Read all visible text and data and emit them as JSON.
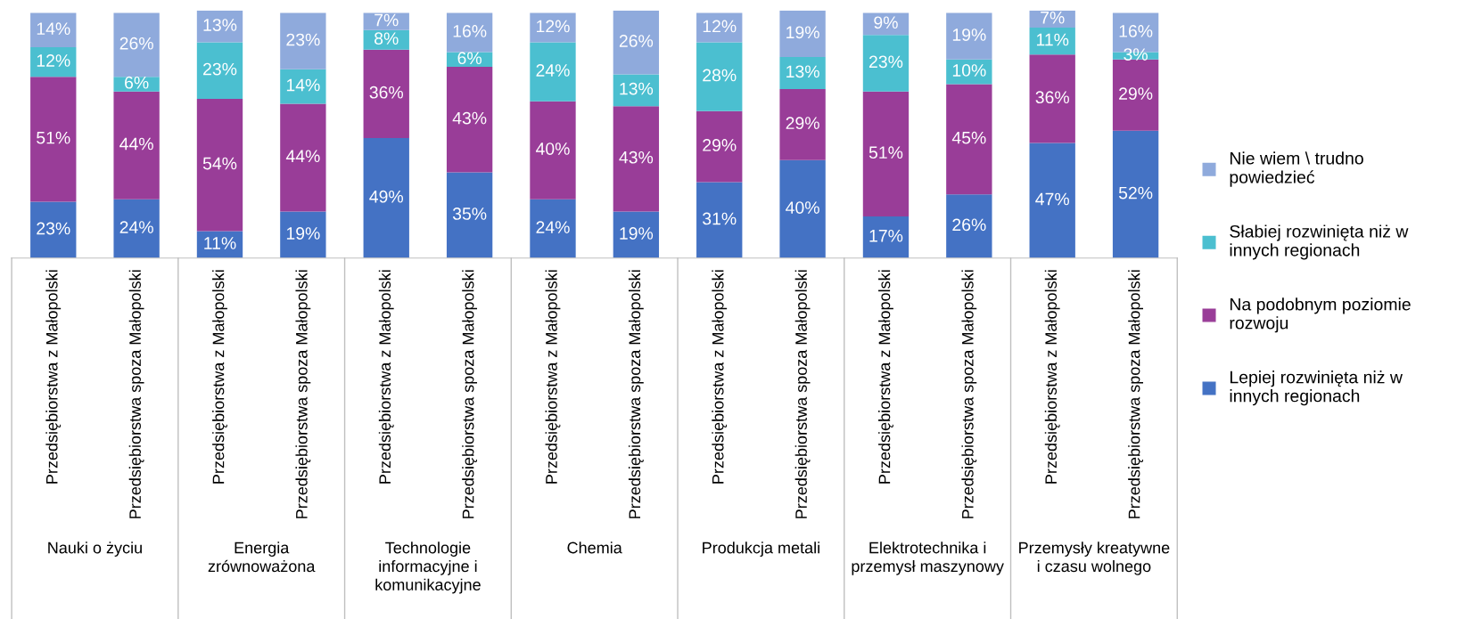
{
  "chart_data": {
    "type": "bar",
    "stacked": true,
    "legend": "right",
    "categories": [
      "Przedsiębiorstwa z Małopolski",
      "Przedsiębiorstwa spoza Małopolski",
      "Przedsiębiorstwa z Małopolski",
      "Przedsiębiorstwa spoza Małopolski",
      "Przedsiębiorstwa z Małopolski",
      "Przedsiębiorstwa spoza Małopolski",
      "Przedsiębiorstwa z Małopolski",
      "Przedsiębiorstwa spoza Małopolski",
      "Przedsiębiorstwa z Małopolski",
      "Przedsiębiorstwa spoza Małopolski",
      "Przedsiębiorstwa z Małopolski",
      "Przedsiębiorstwa spoza Małopolski",
      "Przedsiębiorstwa z Małopolski",
      "Przedsiębiorstwa spoza Małopolski"
    ],
    "annotations": [
      "Nauki o życiu",
      "Energia zrównoważona",
      "Technologie informacyjne i komunikacyjne",
      "Chemia",
      "Produkcja metali",
      "Elektrotechnika i przemysł maszynowy",
      "Przemysły kreatywne i czasu wolnego"
    ],
    "series": [
      {
        "name": "Lepiej rozwinięta niż w innych regionach",
        "color": "#4472c4",
        "values": [
          23,
          24,
          11,
          19,
          49,
          35,
          24,
          19,
          31,
          40,
          17,
          26,
          47,
          52
        ],
        "value_labels": [
          "23%",
          "24%",
          "11%",
          "19%",
          "49%",
          "35%",
          "24%",
          "19%",
          "31%",
          "40%",
          "17%",
          "26%",
          "47%",
          "52%"
        ]
      },
      {
        "name": "Na podobnym poziomie rozwoju",
        "color": "#993d98",
        "values": [
          51,
          44,
          54,
          44,
          36,
          43,
          40,
          43,
          29,
          29,
          51,
          45,
          36,
          29
        ],
        "value_labels": [
          "51%",
          "44%",
          "54%",
          "44%",
          "36%",
          "43%",
          "40%",
          "43%",
          "29%",
          "29%",
          "51%",
          "45%",
          "36%",
          "29%"
        ]
      },
      {
        "name": "Słabiej rozwinięta niż w innych regionach",
        "color": "#4bbfd0",
        "values": [
          12,
          6,
          23,
          14,
          8,
          6,
          24,
          13,
          28,
          13,
          23,
          10,
          11,
          3
        ],
        "value_labels": [
          "12%",
          "6%",
          "23%",
          "14%",
          "8%",
          "6%",
          "24%",
          "13%",
          "28%",
          "13%",
          "23%",
          "10%",
          "11%",
          "3%"
        ]
      },
      {
        "name": "Nie wiem \\ trudno powiedzieć",
        "color": "#8faadc",
        "values": [
          14,
          26,
          13,
          23,
          7,
          16,
          12,
          26,
          12,
          19,
          9,
          19,
          7,
          16
        ],
        "value_labels": [
          "14%",
          "26%",
          "13%",
          "23%",
          "7%",
          "16%",
          "12%",
          "26%",
          "12%",
          "19%",
          "9%",
          "19%",
          "7%",
          "16%"
        ]
      }
    ]
  }
}
